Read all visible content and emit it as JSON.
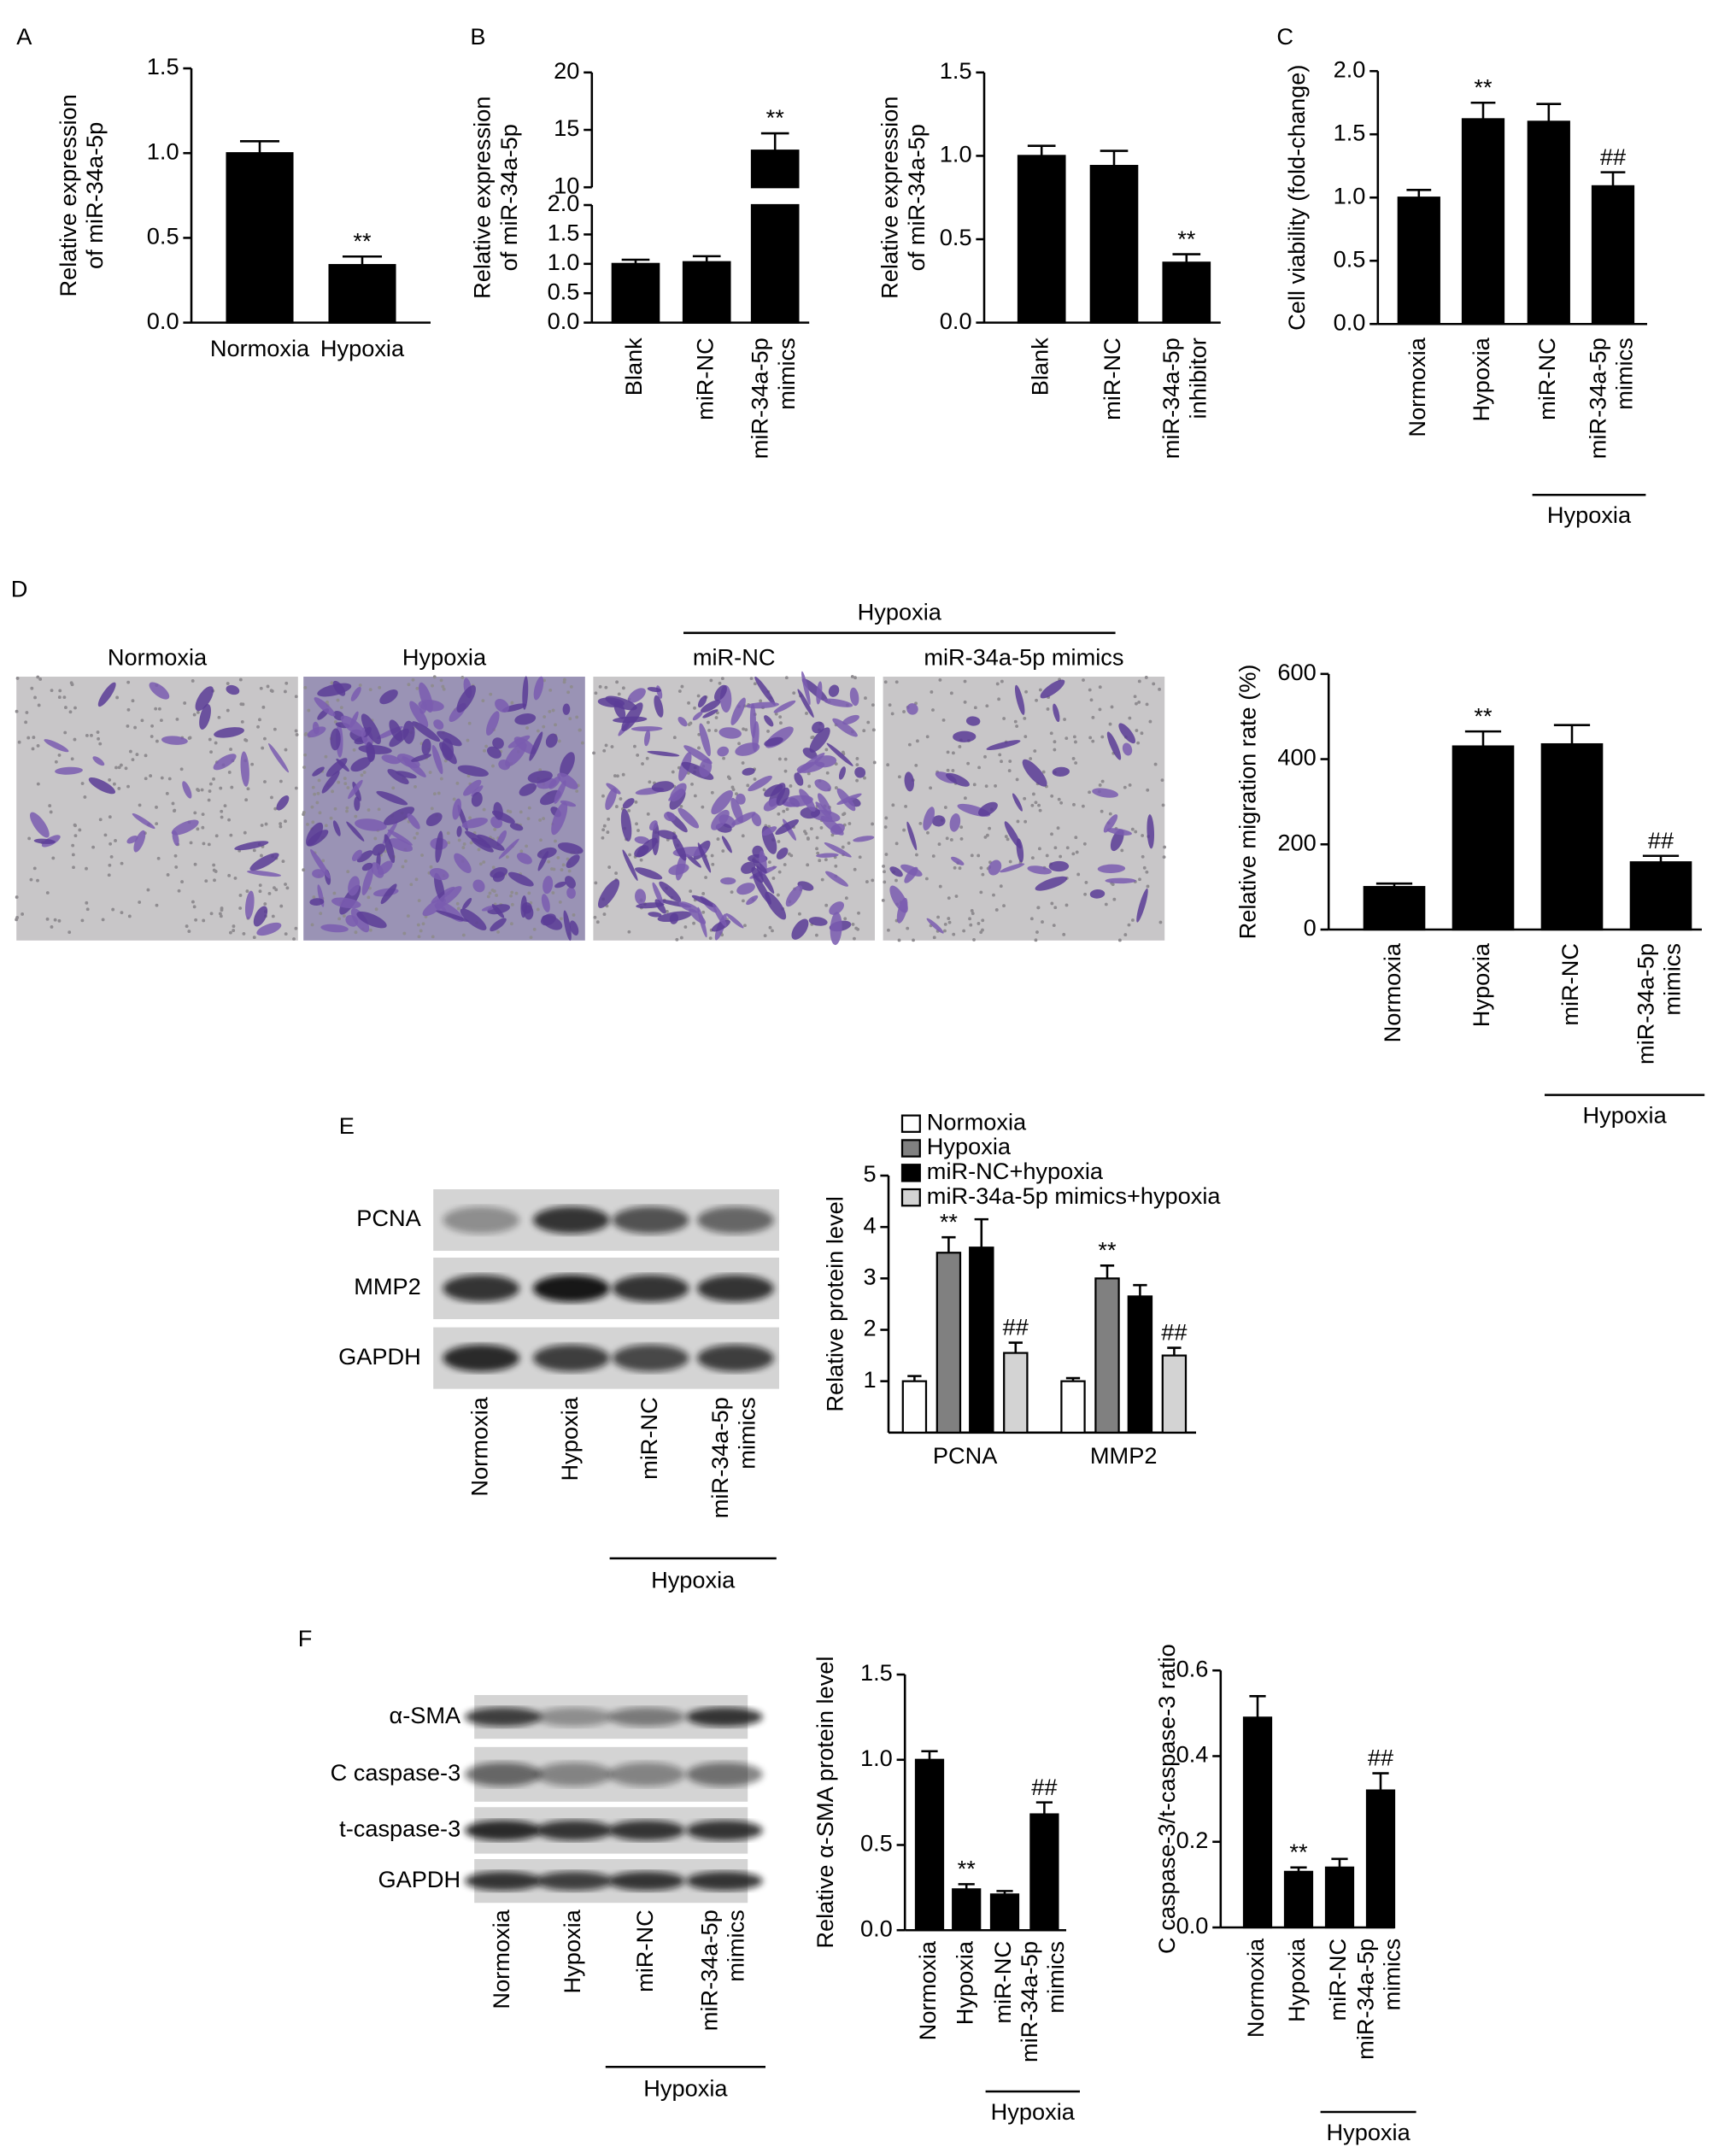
{
  "panel_labels": [
    "A",
    "B",
    "C",
    "D",
    "E",
    "F"
  ],
  "micrographs": {
    "labels": [
      "Normoxia",
      "Hypoxia",
      "miR-NC",
      "miR-34a-5p mimics"
    ],
    "groups": [
      {
        "label": "Hypoxia",
        "members": [
          2,
          3
        ]
      }
    ]
  },
  "blots": [
    {
      "rows": [
        "PCNA",
        "MMP2",
        "GAPDH"
      ],
      "lanes": [
        "Normoxia",
        "Hypoxia",
        "miR-NC",
        [
          "miR-34a-5p",
          "mimics"
        ]
      ],
      "groups": [
        {
          "label": "Hypoxia",
          "members": [
            2,
            3
          ]
        }
      ]
    },
    {
      "rows": [
        "α-SMA",
        "C caspase-3",
        "t-caspase-3",
        "GAPDH"
      ],
      "lanes": [
        "Normoxia",
        "Hypoxia",
        "miR-NC",
        [
          "miR-34a-5p",
          "mimics"
        ]
      ],
      "groups": [
        {
          "label": "Hypoxia",
          "members": [
            2,
            3
          ]
        }
      ]
    }
  ],
  "chart_data": [
    {
      "type": "bar",
      "ylabel": [
        "Relative expression",
        "of miR-34a-5p"
      ],
      "categories": [
        "Normoxia",
        "Hypoxia"
      ],
      "values": [
        1.0,
        0.34
      ],
      "errors": [
        0.07,
        0.05
      ],
      "markers": [
        null,
        "**"
      ],
      "color": "#000000",
      "ylim": [
        0,
        1.5
      ],
      "yticks": [
        {
          "value": 0,
          "label": "0.0"
        },
        0.5,
        {
          "value": 1,
          "label": "1.0"
        },
        1.5
      ]
    },
    {
      "type": "bar",
      "ylabel": [
        "Relative expression",
        "of miR-34a-5p"
      ],
      "categories": [
        "Blank",
        "miR-NC",
        [
          "miR-34a-5p",
          "mimics"
        ]
      ],
      "values": [
        1.0,
        1.03,
        13.2
      ],
      "errors": [
        0.07,
        0.1,
        1.5
      ],
      "markers": [
        null,
        null,
        "**"
      ],
      "color": "#000000",
      "ylim": [
        0,
        20
      ],
      "ybreak": [
        2,
        10
      ],
      "yticks": [
        {
          "value": 0,
          "label": "0.0"
        },
        0.5,
        {
          "value": 1,
          "label": "1.0"
        },
        1.5,
        {
          "value": 2,
          "label": "2.0"
        },
        10,
        15,
        20
      ]
    },
    {
      "type": "bar",
      "ylabel": [
        "Relative expression",
        "of miR-34a-5p"
      ],
      "categories": [
        "Blank",
        "miR-NC",
        [
          "miR-34a-5p",
          "inhibitor"
        ]
      ],
      "values": [
        1.0,
        0.94,
        0.36
      ],
      "errors": [
        0.06,
        0.09,
        0.05
      ],
      "markers": [
        null,
        null,
        "**"
      ],
      "color": "#000000",
      "ylim": [
        0,
        1.5
      ],
      "yticks": [
        {
          "value": 0,
          "label": "0.0"
        },
        0.5,
        {
          "value": 1,
          "label": "1.0"
        },
        1.5
      ]
    },
    {
      "type": "bar",
      "ylabel": "Cell viability (fold-change)",
      "categories": [
        "Normoxia",
        "Hypoxia",
        "miR-NC",
        [
          "miR-34a-5p",
          "mimics"
        ]
      ],
      "values": [
        1.0,
        1.62,
        1.6,
        1.09
      ],
      "errors": [
        0.06,
        0.13,
        0.14,
        0.11
      ],
      "markers": [
        null,
        "**",
        null,
        "##"
      ],
      "groups": [
        {
          "label": "Hypoxia",
          "members": [
            2,
            3
          ]
        }
      ],
      "color": "#000000",
      "ylim": [
        0,
        2
      ],
      "yticks": [
        {
          "value": 0,
          "label": "0.0"
        },
        0.5,
        {
          "value": 1,
          "label": "1.0"
        },
        1.5,
        {
          "value": 2,
          "label": "2.0"
        }
      ]
    },
    {
      "type": "bar",
      "ylabel": "Relative migration rate (%)",
      "categories": [
        "Normoxia",
        "Hypoxia",
        "miR-NC",
        [
          "miR-34a-5p",
          "mimics"
        ]
      ],
      "values": [
        100,
        430,
        435,
        158
      ],
      "errors": [
        8,
        35,
        45,
        15
      ],
      "markers": [
        null,
        "**",
        null,
        "##"
      ],
      "groups": [
        {
          "label": "Hypoxia",
          "members": [
            2,
            3
          ]
        }
      ],
      "color": "#000000",
      "ylim": [
        0,
        600
      ],
      "yticks": [
        0,
        200,
        400,
        600
      ]
    },
    {
      "type": "bar",
      "ylabel": "Relative protein level",
      "categories": [
        "PCNA",
        "MMP2"
      ],
      "series": [
        {
          "name": "Normoxia",
          "color": "#ffffff",
          "values": [
            1.0,
            1.0
          ],
          "errors": [
            0.1,
            0.06
          ],
          "markers": [
            null,
            null
          ]
        },
        {
          "name": "Hypoxia",
          "color": "#808080",
          "values": [
            3.5,
            3.0
          ],
          "errors": [
            0.3,
            0.25
          ],
          "markers": [
            "**",
            "**"
          ]
        },
        {
          "name": "miR-NC+hypoxia",
          "color": "#000000",
          "values": [
            3.6,
            2.65
          ],
          "errors": [
            0.55,
            0.22
          ],
          "markers": [
            null,
            null
          ]
        },
        {
          "name": "miR-34a-5p mimics+hypoxia",
          "color": "#d3d3d3",
          "values": [
            1.55,
            1.5
          ],
          "errors": [
            0.2,
            0.15
          ],
          "markers": [
            "##",
            "##"
          ]
        }
      ],
      "ylim": [
        0,
        5
      ],
      "yticks": [
        1,
        2,
        3,
        4,
        5
      ]
    },
    {
      "type": "bar",
      "ylabel": "Relative α-SMA protein level",
      "categories": [
        "Normoxia",
        "Hypoxia",
        "miR-NC",
        [
          "miR-34a-5p",
          "mimics"
        ]
      ],
      "values": [
        1.0,
        0.24,
        0.21,
        0.68
      ],
      "errors": [
        0.05,
        0.03,
        0.02,
        0.07
      ],
      "markers": [
        null,
        "**",
        null,
        "##"
      ],
      "groups": [
        {
          "label": "Hypoxia",
          "members": [
            2,
            3
          ]
        }
      ],
      "color": "#000000",
      "ylim": [
        0,
        1.5
      ],
      "yticks": [
        {
          "value": 0,
          "label": "0.0"
        },
        0.5,
        {
          "value": 1,
          "label": "1.0"
        },
        1.5
      ]
    },
    {
      "type": "bar",
      "ylabel": "C caspase-3/t-caspase-3 ratio",
      "categories": [
        "Normoxia",
        "Hypoxia",
        "miR-NC",
        [
          "miR-34a-5p",
          "mimics"
        ]
      ],
      "values": [
        0.49,
        0.13,
        0.14,
        0.32
      ],
      "errors": [
        0.05,
        0.01,
        0.02,
        0.04
      ],
      "markers": [
        null,
        "**",
        null,
        "##"
      ],
      "groups": [
        {
          "label": "Hypoxia",
          "members": [
            2,
            3
          ]
        }
      ],
      "color": "#000000",
      "ylim": [
        0,
        0.6
      ],
      "yticks": [
        {
          "value": 0,
          "label": "0.0"
        },
        0.2,
        0.4,
        0.6
      ]
    }
  ]
}
